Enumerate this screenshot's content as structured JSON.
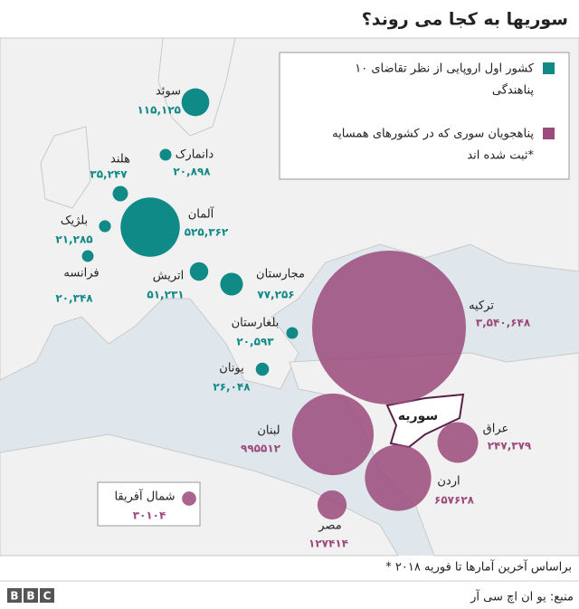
{
  "header": {
    "title": "سوریها به کجا می روند؟"
  },
  "groups": [
    {
      "legend": [
        "۱۰ کشور اول اروپایی از نظر تقاضای",
        "پناهندگی"
      ],
      "color": "#0f8a86",
      "countries": [
        {
          "name": "سوئد",
          "value": 115125,
          "label": "۱۱۵,۱۲۵"
        },
        {
          "name": "دانمارک",
          "value": 20898,
          "label": "۲۰,۸۹۸"
        },
        {
          "name": "هلند",
          "value": 35247,
          "label": "۳۵,۲۴۷"
        },
        {
          "name": "بلژیک",
          "value": 21285,
          "label": "۲۱,۲۸۵"
        },
        {
          "name": "آلمان",
          "value": 525362,
          "label": "۵۲۵,۳۶۲"
        },
        {
          "name": "فرانسه",
          "value": 20348,
          "label": "۲۰,۳۴۸"
        },
        {
          "name": "اتریش",
          "value": 51231,
          "label": "۵۱,۲۳۱"
        },
        {
          "name": "مجارستان",
          "value": 77256,
          "label": "۷۷,۲۵۶"
        },
        {
          "name": "بلغارستان",
          "value": 20593,
          "label": "۲۰,۵۹۳"
        },
        {
          "name": "یونان",
          "value": 26048,
          "label": "۲۶,۰۴۸"
        }
      ]
    },
    {
      "legend": [
        "پناهجویان سوری که در کشورهای همسایه",
        "ثبت شده اند*"
      ],
      "color": "#9b4a7b",
      "countries": [
        {
          "name": "ترکیه",
          "value": 3540648,
          "label": "۳,۵۴۰,۶۴۸"
        },
        {
          "name": "لبنان",
          "value": 995512,
          "label": "۹۹۵۵۱۲"
        },
        {
          "name": "عراق",
          "value": 247379,
          "label": "۲۴۷,۳۷۹"
        },
        {
          "name": "اردن",
          "value": 657628,
          "label": "۶۵۷۶۲۸"
        },
        {
          "name": "مصر",
          "value": 127414,
          "label": "۱۲۷۴۱۴"
        },
        {
          "name": "شمال آفریقا",
          "value": 30104,
          "label": "۳۰۱۰۴"
        }
      ]
    }
  ],
  "syria": "سوریه",
  "footnote": "* براساس آخرین آمارها تا فوریه ۲۰۱۸",
  "source": "منبع: یو ان اچ سی آر",
  "logo": "BBC"
}
